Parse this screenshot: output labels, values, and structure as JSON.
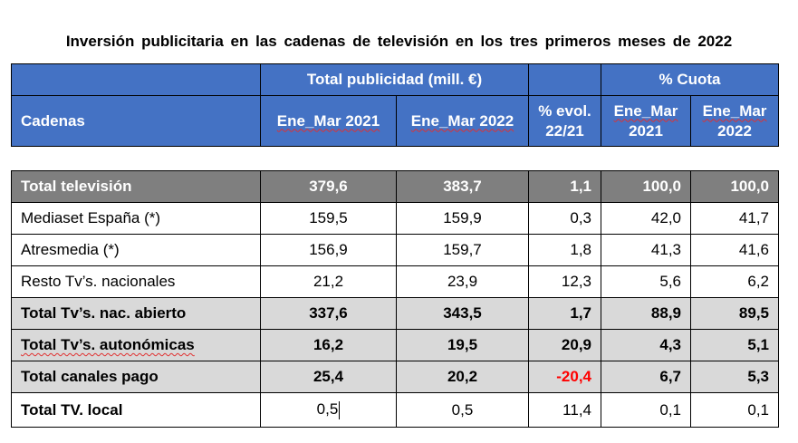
{
  "title": "Inversión publicitaria en las cadenas de televisión en los tres primeros meses de 2022",
  "header": {
    "group_total": "Total publicidad (mill. €)",
    "group_cuota": "% Cuota",
    "col_cadenas": "Cadenas",
    "col_ene_mar_2021": "Ene_Mar 2021",
    "col_ene_mar_2022": "Ene_Mar 2022",
    "col_evol_line1": "% evol.",
    "col_evol_line2": "22/21",
    "col_cuota_2021_line1": "Ene_Mar",
    "col_cuota_2021_line2": "2021",
    "col_cuota_2022_line1": "Ene_Mar",
    "col_cuota_2022_line2": "2022"
  },
  "rows": [
    {
      "name": "Total televisión",
      "v2021": "379,6",
      "v2022": "383,7",
      "evol": "1,1",
      "c2021": "100,0",
      "c2022": "100,0"
    },
    {
      "name": "Mediaset España (*)",
      "v2021": "159,5",
      "v2022": "159,9",
      "evol": "0,3",
      "c2021": "42,0",
      "c2022": "41,7"
    },
    {
      "name": "Atresmedia (*)",
      "v2021": "156,9",
      "v2022": "159,7",
      "evol": "1,8",
      "c2021": "41,3",
      "c2022": "41,6"
    },
    {
      "name": "Resto Tv’s. nacionales",
      "v2021": "21,2",
      "v2022": "23,9",
      "evol": "12,3",
      "c2021": "5,6",
      "c2022": "6,2"
    },
    {
      "name": "Total Tv’s. nac. abierto",
      "v2021": "337,6",
      "v2022": "343,5",
      "evol": "1,7",
      "c2021": "88,9",
      "c2022": "89,5"
    },
    {
      "name": "Total Tv’s. autonómicas",
      "v2021": "16,2",
      "v2022": "19,5",
      "evol": "20,9",
      "c2021": "4,3",
      "c2022": "5,1"
    },
    {
      "name": "Total canales pago",
      "v2021": "25,4",
      "v2022": "20,2",
      "evol": "-20,4",
      "c2021": "6,7",
      "c2022": "5,3"
    },
    {
      "name": "Total TV. local",
      "v2021": "0,5",
      "v2022": "0,5",
      "evol": "11,4",
      "c2021": "0,1",
      "c2022": "0,1"
    }
  ],
  "colors": {
    "header_blue": "#4472c4",
    "total_grey": "#7f7f7f",
    "light_grey": "#d9d9d9",
    "negative_red": "#ff0000"
  }
}
